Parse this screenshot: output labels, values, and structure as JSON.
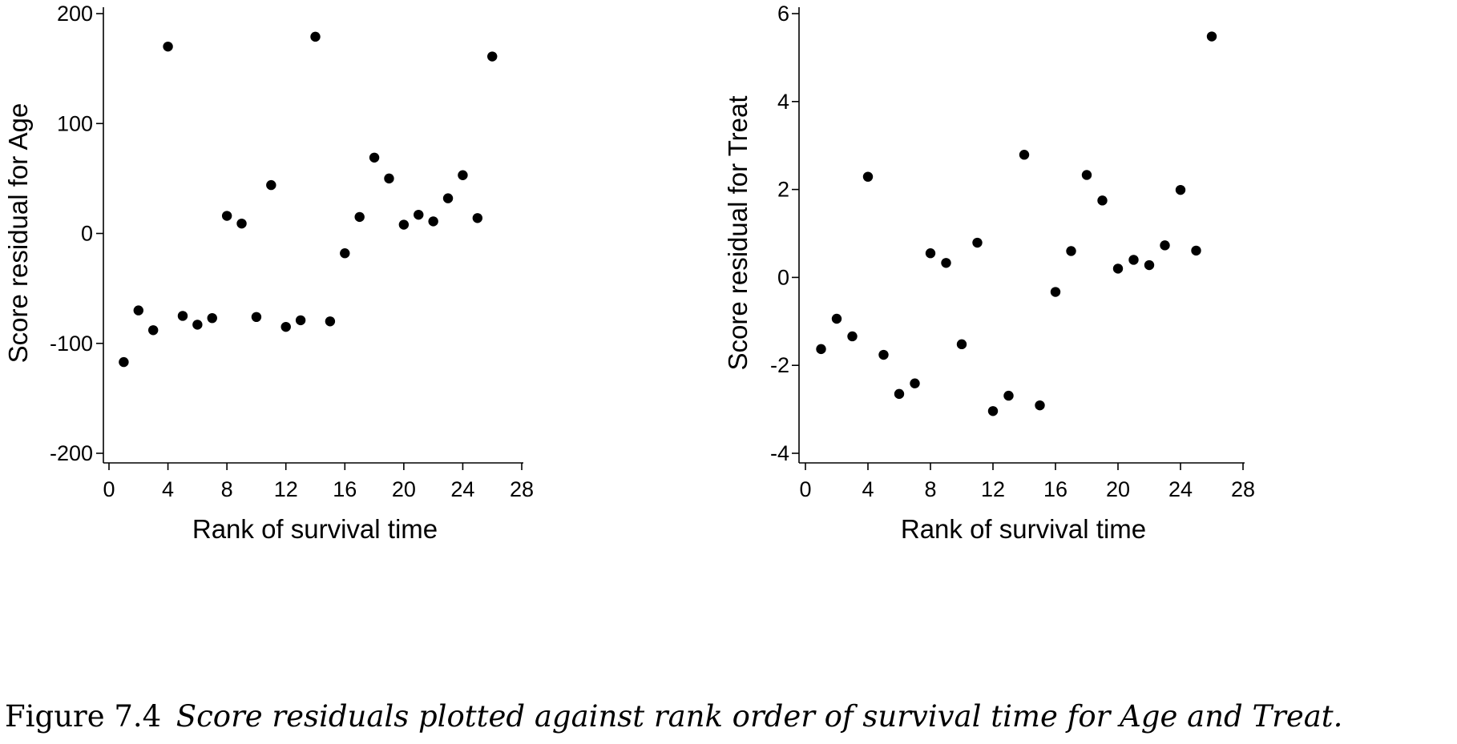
{
  "chart_data": [
    {
      "type": "scatter",
      "xlabel": "Rank of survival time",
      "ylabel": "Score residual for Age",
      "xlim": [
        0,
        28
      ],
      "ylim": [
        -200,
        200
      ],
      "xticks": [
        "0",
        "4",
        "8",
        "12",
        "16",
        "20",
        "24",
        "28"
      ],
      "yticks": [
        "200",
        "100",
        "0",
        "-100",
        "-200"
      ],
      "grid": false,
      "x": [
        1,
        2,
        3,
        4,
        5,
        6,
        7,
        8,
        9,
        10,
        11,
        12,
        13,
        14,
        15,
        16,
        17,
        18,
        19,
        20,
        21,
        22,
        23,
        24,
        25,
        26
      ],
      "y": [
        -117,
        -70,
        -88,
        170,
        -75,
        -83,
        -77,
        16,
        9,
        -76,
        44,
        -85,
        -79,
        179,
        -80,
        -18,
        15,
        69,
        50,
        8,
        17,
        11,
        32,
        53,
        14,
        161
      ]
    },
    {
      "type": "scatter",
      "xlabel": "Rank of survival time",
      "ylabel": "Score residual for Treat",
      "xlim": [
        0,
        28
      ],
      "ylim": [
        -4,
        6
      ],
      "xticks": [
        "0",
        "4",
        "8",
        "12",
        "16",
        "20",
        "24",
        "28"
      ],
      "yticks": [
        "6",
        "4",
        "2",
        "0",
        "-2",
        "-4"
      ],
      "grid": false,
      "x": [
        1,
        2,
        3,
        4,
        5,
        6,
        7,
        8,
        9,
        10,
        11,
        12,
        13,
        14,
        15,
        16,
        17,
        18,
        19,
        20,
        21,
        22,
        23,
        24,
        25,
        26
      ],
      "y": [
        -1.63,
        -0.94,
        -1.34,
        2.29,
        -1.76,
        -2.65,
        -2.41,
        0.55,
        0.33,
        -1.52,
        0.79,
        -3.04,
        -2.69,
        2.79,
        -2.91,
        -0.33,
        0.6,
        2.33,
        1.75,
        0.2,
        0.4,
        0.28,
        0.73,
        1.99,
        0.61,
        5.48
      ]
    }
  ],
  "caption": {
    "number": "Figure 7.4",
    "text": "Score residuals plotted against rank order of survival time for Age and Treat."
  }
}
